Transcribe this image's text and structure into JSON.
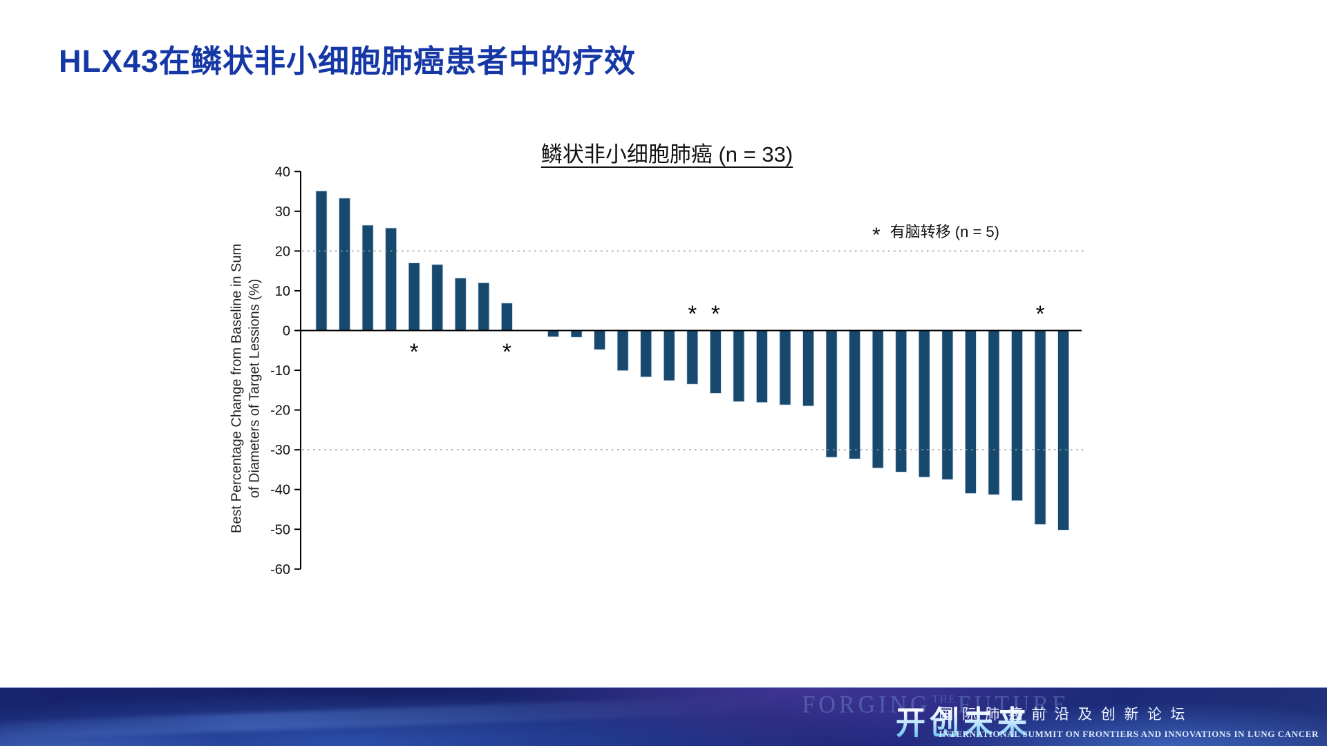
{
  "slide": {
    "title": "HLX43在鳞状非小细胞肺癌患者中的疗效",
    "title_color": "#1638A6"
  },
  "chart_data": {
    "type": "bar",
    "subtype": "waterfall",
    "title": "鳞状非小细胞肺癌 (n = 33)",
    "n": 33,
    "ylabel": "Best Percentage Change from Baseline in Sum of Diameters of Target Lessions (%)",
    "ylabel_line1": "Best Percentage Change from Baseline in Sum",
    "ylabel_line2": "of Diameters of Target Lessions (%)",
    "ylim": [
      -60,
      40
    ],
    "ytick_interval": 10,
    "ytick_labels": [
      "40",
      "30",
      "20",
      "10",
      "0",
      "-10",
      "-20",
      "-30",
      "-40",
      "-50",
      "-60"
    ],
    "reference_lines": [
      20,
      -30
    ],
    "grid": "dotted horizontal reference lines at 20 and -30 only",
    "legend_position": "upper right inside plot",
    "bar_color": "#17496F",
    "bar_edge_color": "#C9D8E8",
    "axis_color": "#000000",
    "reference_line_color": "#9A9A9A",
    "values": [
      35.1,
      33.3,
      26.5,
      25.8,
      17.0,
      16.6,
      13.2,
      12.0,
      6.9,
      0,
      -1.6,
      -1.7,
      -4.8,
      -10.1,
      -11.7,
      -12.6,
      -13.5,
      -15.8,
      -17.9,
      -18.1,
      -18.7,
      -19.0,
      -31.9,
      -32.3,
      -34.6,
      -35.6,
      -36.9,
      -37.5,
      -41.0,
      -41.3,
      -42.8,
      -48.8,
      -50.2
    ],
    "brain_met_indices_1based": [
      5,
      9,
      17,
      18,
      32
    ],
    "marker_symbol": "*",
    "legend": {
      "symbol": "*",
      "label": "有脑转移 (n = 5)"
    }
  },
  "footer": {
    "watermark_part1": "FORGING",
    "watermark_part2": "THE",
    "watermark_part3": "FUTURE",
    "slogan_cn": "开创未来",
    "summit_cn": "国际肺癌前沿及创新论坛",
    "summit_en": "INTERNATIONAL SUMMIT ON FRONTIERS AND INNOVATIONS IN LUNG CANCER"
  }
}
